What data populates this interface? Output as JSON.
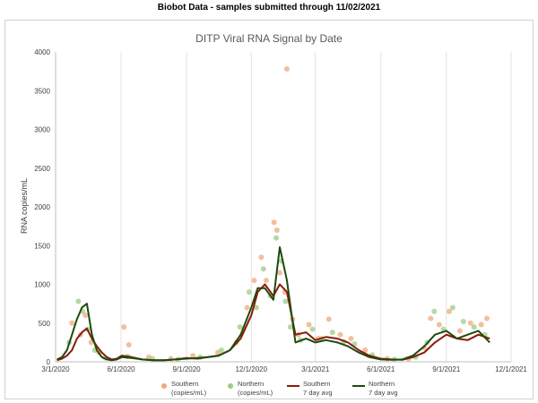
{
  "header": {
    "text": "Biobot Data - samples submitted through 11/02/2021"
  },
  "chart_data": {
    "type": "scatter",
    "title": "DITP Viral RNA Signal by Date",
    "xlabel": "",
    "ylabel": "RNA copies/mL",
    "ylim": [
      0,
      4000
    ],
    "xlim": [
      "2020-03-01",
      "2021-12-01"
    ],
    "yticks": [
      "0",
      "500",
      "1000",
      "1500",
      "2000",
      "2500",
      "3000",
      "3500",
      "4000"
    ],
    "xticks": [
      "3/1/2020",
      "6/1/2020",
      "9/1/2020",
      "12/1/2020",
      "3/1/2021",
      "6/1/2021",
      "9/1/2021",
      "12/1/2021"
    ],
    "grid": {
      "vertical": true,
      "horizontal": false
    },
    "legend_position": "bottom",
    "legend": [
      {
        "line1": "Southern",
        "line2": "(copies/mL)",
        "kind": "marker",
        "color": "#f0a878"
      },
      {
        "line1": "Northern",
        "line2": "(copies/mL)",
        "kind": "marker",
        "color": "#9ccc84"
      },
      {
        "line1": "Southern",
        "line2": "7 day avg",
        "kind": "line",
        "color": "#8b1a0a"
      },
      {
        "line1": "Northern",
        "line2": "7 day avg",
        "kind": "line",
        "color": "#1d4a0e"
      }
    ],
    "series": [
      {
        "name": "Southern 7 day avg",
        "color": "#8b1a0a",
        "x": [
          "2020-03-03",
          "2020-03-10",
          "2020-03-17",
          "2020-03-24",
          "2020-03-31",
          "2020-04-07",
          "2020-04-14",
          "2020-04-21",
          "2020-04-28",
          "2020-05-05",
          "2020-05-12",
          "2020-05-19",
          "2020-05-26",
          "2020-06-02",
          "2020-06-16",
          "2020-07-01",
          "2020-07-16",
          "2020-08-01",
          "2020-08-16",
          "2020-09-01",
          "2020-09-16",
          "2020-10-01",
          "2020-10-16",
          "2020-11-01",
          "2020-11-16",
          "2020-12-01",
          "2020-12-10",
          "2020-12-20",
          "2021-01-01",
          "2021-01-10",
          "2021-01-20",
          "2021-02-01",
          "2021-02-16",
          "2021-03-01",
          "2021-03-16",
          "2021-04-01",
          "2021-04-16",
          "2021-05-01",
          "2021-05-16",
          "2021-06-01",
          "2021-06-16",
          "2021-07-01",
          "2021-07-16",
          "2021-08-01",
          "2021-08-16",
          "2021-09-01",
          "2021-09-16",
          "2021-10-01",
          "2021-10-16",
          "2021-11-01"
        ],
        "y": [
          20,
          40,
          80,
          150,
          300,
          380,
          430,
          300,
          200,
          120,
          60,
          30,
          40,
          80,
          60,
          30,
          20,
          20,
          30,
          50,
          40,
          60,
          80,
          150,
          300,
          600,
          900,
          1000,
          850,
          1000,
          900,
          350,
          380,
          280,
          320,
          300,
          250,
          150,
          80,
          40,
          30,
          25,
          60,
          120,
          250,
          350,
          300,
          280,
          350,
          300
        ]
      },
      {
        "name": "Northern 7 day avg",
        "color": "#1d4a0e",
        "x": [
          "2020-03-03",
          "2020-03-10",
          "2020-03-17",
          "2020-03-24",
          "2020-03-31",
          "2020-04-07",
          "2020-04-14",
          "2020-04-21",
          "2020-04-28",
          "2020-05-05",
          "2020-05-12",
          "2020-05-19",
          "2020-05-26",
          "2020-06-02",
          "2020-06-16",
          "2020-07-01",
          "2020-07-16",
          "2020-08-01",
          "2020-08-16",
          "2020-09-01",
          "2020-09-16",
          "2020-10-01",
          "2020-10-16",
          "2020-11-01",
          "2020-11-16",
          "2020-12-01",
          "2020-12-10",
          "2020-12-20",
          "2021-01-01",
          "2021-01-10",
          "2021-01-20",
          "2021-02-01",
          "2021-02-16",
          "2021-03-01",
          "2021-03-16",
          "2021-04-01",
          "2021-04-16",
          "2021-05-01",
          "2021-05-16",
          "2021-06-01",
          "2021-06-16",
          "2021-07-01",
          "2021-07-16",
          "2021-08-01",
          "2021-08-16",
          "2021-09-01",
          "2021-09-16",
          "2021-10-01",
          "2021-10-16",
          "2021-11-01"
        ],
        "y": [
          30,
          60,
          150,
          350,
          550,
          700,
          750,
          350,
          150,
          60,
          30,
          20,
          30,
          60,
          50,
          30,
          20,
          20,
          30,
          40,
          50,
          60,
          80,
          150,
          350,
          700,
          950,
          950,
          800,
          1480,
          1050,
          250,
          300,
          250,
          280,
          250,
          200,
          120,
          60,
          30,
          25,
          30,
          80,
          200,
          350,
          400,
          300,
          350,
          400,
          250
        ]
      }
    ],
    "scatter": [
      {
        "name": "Southern (copies/mL)",
        "color": "#f0a878",
        "points": [
          [
            "2020-03-24",
            500
          ],
          [
            "2020-04-05",
            350
          ],
          [
            "2020-04-12",
            600
          ],
          [
            "2020-04-20",
            250
          ],
          [
            "2020-05-01",
            120
          ],
          [
            "2020-06-05",
            450
          ],
          [
            "2020-06-12",
            220
          ],
          [
            "2020-07-10",
            60
          ],
          [
            "2020-08-10",
            40
          ],
          [
            "2020-09-10",
            80
          ],
          [
            "2020-10-15",
            120
          ],
          [
            "2020-11-10",
            250
          ],
          [
            "2020-11-25",
            700
          ],
          [
            "2020-12-05",
            1050
          ],
          [
            "2020-12-15",
            1350
          ],
          [
            "2020-12-22",
            1050
          ],
          [
            "2021-01-02",
            1800
          ],
          [
            "2021-01-06",
            1700
          ],
          [
            "2021-01-10",
            1150
          ],
          [
            "2021-01-17",
            900
          ],
          [
            "2021-01-20",
            3780
          ],
          [
            "2021-01-28",
            550
          ],
          [
            "2021-02-05",
            350
          ],
          [
            "2021-02-20",
            480
          ],
          [
            "2021-03-05",
            300
          ],
          [
            "2021-03-20",
            550
          ],
          [
            "2021-04-05",
            350
          ],
          [
            "2021-04-20",
            300
          ],
          [
            "2021-05-10",
            150
          ],
          [
            "2021-06-10",
            40
          ],
          [
            "2021-07-10",
            40
          ],
          [
            "2021-08-01",
            180
          ],
          [
            "2021-08-10",
            560
          ],
          [
            "2021-08-22",
            480
          ],
          [
            "2021-09-05",
            650
          ],
          [
            "2021-09-20",
            400
          ],
          [
            "2021-10-05",
            500
          ],
          [
            "2021-10-20",
            480
          ],
          [
            "2021-10-28",
            560
          ]
        ]
      },
      {
        "name": "Northern (copies/mL)",
        "color": "#9ccc84",
        "points": [
          [
            "2020-03-20",
            250
          ],
          [
            "2020-04-02",
            780
          ],
          [
            "2020-04-08",
            650
          ],
          [
            "2020-04-15",
            420
          ],
          [
            "2020-04-25",
            150
          ],
          [
            "2020-05-10",
            50
          ],
          [
            "2020-06-10",
            70
          ],
          [
            "2020-07-15",
            40
          ],
          [
            "2020-08-20",
            30
          ],
          [
            "2020-09-20",
            60
          ],
          [
            "2020-10-20",
            150
          ],
          [
            "2020-11-15",
            450
          ],
          [
            "2020-11-28",
            900
          ],
          [
            "2020-12-08",
            700
          ],
          [
            "2020-12-18",
            1200
          ],
          [
            "2020-12-28",
            850
          ],
          [
            "2021-01-05",
            1600
          ],
          [
            "2021-01-12",
            1300
          ],
          [
            "2021-01-18",
            780
          ],
          [
            "2021-01-25",
            450
          ],
          [
            "2021-02-08",
            280
          ],
          [
            "2021-02-25",
            420
          ],
          [
            "2021-03-10",
            300
          ],
          [
            "2021-03-25",
            380
          ],
          [
            "2021-04-10",
            260
          ],
          [
            "2021-04-25",
            230
          ],
          [
            "2021-05-20",
            90
          ],
          [
            "2021-06-20",
            30
          ],
          [
            "2021-07-20",
            60
          ],
          [
            "2021-08-05",
            250
          ],
          [
            "2021-08-15",
            650
          ],
          [
            "2021-08-28",
            420
          ],
          [
            "2021-09-10",
            700
          ],
          [
            "2021-09-25",
            520
          ],
          [
            "2021-10-10",
            450
          ],
          [
            "2021-10-25",
            350
          ]
        ]
      }
    ]
  }
}
